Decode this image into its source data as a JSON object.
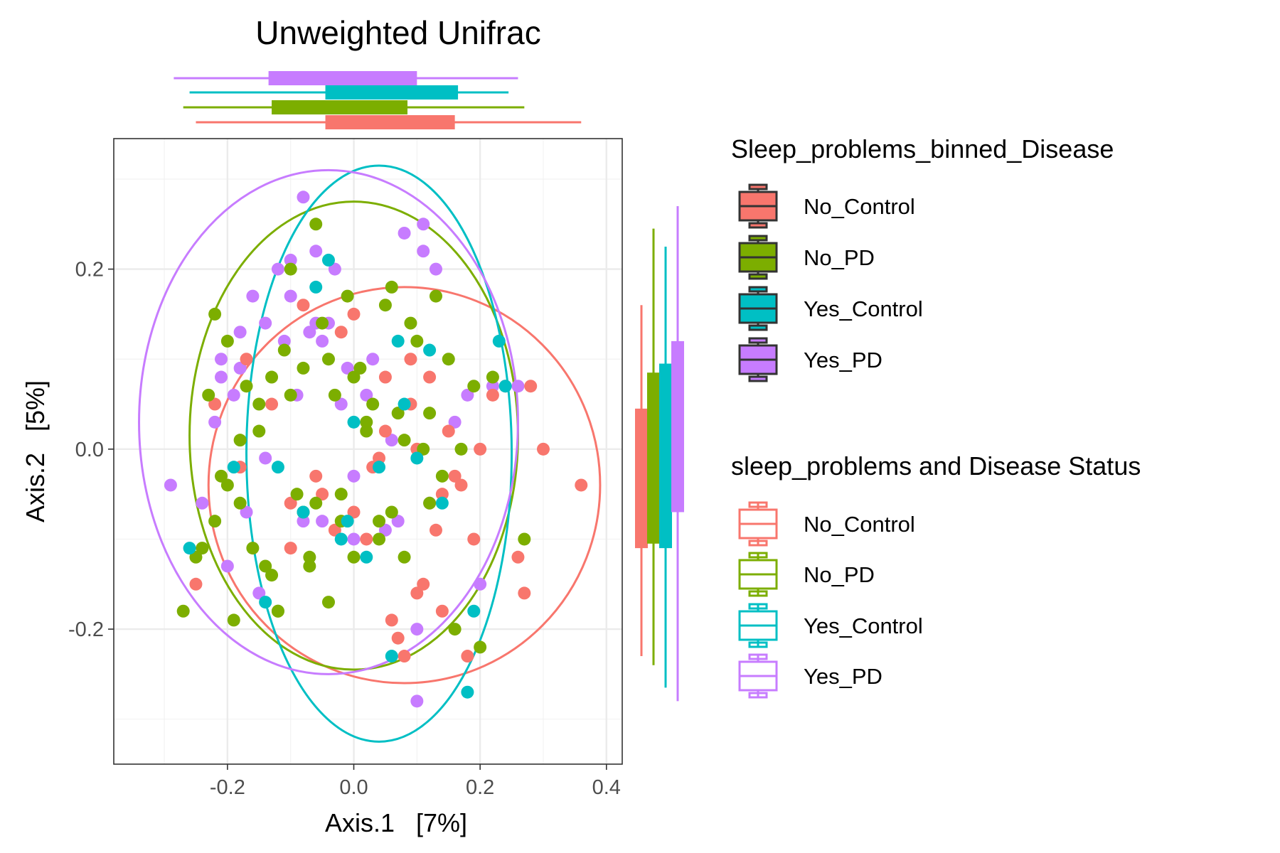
{
  "chart_data": {
    "type": "scatter",
    "title": "Unweighted Unifrac",
    "xlabel": "Axis.1   [7%]",
    "ylabel": "Axis.2   [5%]",
    "xlim": [
      -0.38,
      0.425
    ],
    "ylim": [
      -0.35,
      0.345
    ],
    "x_ticks": [
      -0.2,
      0.0,
      0.2,
      0.4
    ],
    "x_tick_labels": [
      "-0.2",
      "0.0",
      "0.2",
      "0.4"
    ],
    "y_ticks": [
      -0.2,
      0.0,
      0.2
    ],
    "y_tick_labels": [
      "-0.2",
      "0.0",
      "0.2"
    ],
    "grid": true,
    "legend_position": "right",
    "legend_fill": {
      "title": "Sleep_problems_binned_Disease",
      "entries": [
        "No_Control",
        "No_PD",
        "Yes_Control",
        "Yes_PD"
      ]
    },
    "legend_color": {
      "title": "sleep_problems and Disease Status",
      "entries": [
        "No_Control",
        "No_PD",
        "Yes_Control",
        "Yes_PD"
      ]
    },
    "series": [
      {
        "name": "No_Control",
        "color": "#F8766D",
        "ellipse": {
          "cx": 0.08,
          "cy": -0.04,
          "rx": 0.31,
          "ry": 0.22
        },
        "box_x": {
          "min": -0.25,
          "q1": -0.045,
          "median": 0.055,
          "q3": 0.16,
          "max": 0.36
        },
        "box_y": {
          "min": -0.23,
          "q1": -0.11,
          "median": -0.03,
          "q3": 0.045,
          "max": 0.16
        },
        "x": [
          -0.25,
          -0.22,
          -0.17,
          -0.13,
          -0.1,
          -0.08,
          -0.06,
          -0.03,
          -0.02,
          0.0,
          0.02,
          0.04,
          0.05,
          0.06,
          0.07,
          0.08,
          0.09,
          0.1,
          0.11,
          0.12,
          0.13,
          0.14,
          0.15,
          0.17,
          0.18,
          0.19,
          0.2,
          0.22,
          0.24,
          0.26,
          0.27,
          0.28,
          0.3,
          0.36,
          -0.18,
          -0.1,
          0.0,
          0.05,
          0.1,
          0.14,
          0.16,
          -0.05,
          0.03,
          0.09
        ],
        "y": [
          -0.15,
          0.05,
          0.1,
          0.05,
          -0.11,
          0.16,
          -0.03,
          -0.09,
          0.13,
          0.15,
          -0.1,
          -0.01,
          0.02,
          -0.19,
          -0.21,
          -0.23,
          0.1,
          0.0,
          -0.15,
          0.08,
          -0.09,
          -0.18,
          0.02,
          -0.04,
          -0.23,
          -0.1,
          0.0,
          0.06,
          0.07,
          -0.12,
          -0.16,
          0.07,
          0.0,
          -0.04,
          -0.02,
          -0.06,
          -0.07,
          0.08,
          -0.16,
          -0.05,
          -0.03,
          -0.05,
          -0.02,
          0.05
        ]
      },
      {
        "name": "No_PD",
        "color": "#7CAE00",
        "ellipse": {
          "cx": 0.0,
          "cy": 0.015,
          "rx": 0.26,
          "ry": 0.26
        },
        "box_x": {
          "min": -0.27,
          "q1": -0.13,
          "median": -0.05,
          "q3": 0.085,
          "max": 0.27
        },
        "box_y": {
          "min": -0.24,
          "q1": -0.105,
          "median": -0.015,
          "q3": 0.085,
          "max": 0.245
        },
        "x": [
          -0.27,
          -0.25,
          -0.23,
          -0.22,
          -0.21,
          -0.2,
          -0.19,
          -0.18,
          -0.17,
          -0.16,
          -0.15,
          -0.14,
          -0.13,
          -0.12,
          -0.11,
          -0.1,
          -0.09,
          -0.08,
          -0.07,
          -0.06,
          -0.05,
          -0.04,
          -0.03,
          -0.02,
          -0.01,
          0.0,
          0.01,
          0.02,
          0.03,
          0.04,
          0.05,
          0.06,
          0.07,
          0.08,
          0.09,
          0.1,
          0.11,
          0.12,
          0.13,
          0.14,
          0.15,
          0.17,
          0.19,
          0.2,
          0.22,
          0.27,
          -0.22,
          -0.18,
          -0.13,
          -0.08,
          -0.04,
          0.0,
          0.04,
          0.08,
          0.12,
          0.16,
          -0.24,
          -0.2,
          -0.15,
          -0.1,
          -0.06,
          -0.02,
          0.02,
          0.06,
          -0.12,
          -0.07
        ],
        "y": [
          -0.18,
          -0.12,
          0.06,
          0.15,
          -0.03,
          0.12,
          -0.19,
          -0.06,
          0.07,
          -0.11,
          0.05,
          -0.13,
          0.08,
          -0.18,
          0.11,
          0.2,
          -0.05,
          0.09,
          -0.13,
          0.25,
          0.14,
          -0.17,
          0.06,
          -0.08,
          0.17,
          -0.12,
          0.09,
          0.02,
          0.05,
          -0.08,
          0.16,
          0.18,
          0.04,
          0.01,
          0.14,
          0.12,
          0.0,
          -0.06,
          0.17,
          -0.03,
          0.1,
          0.0,
          0.07,
          -0.22,
          0.08,
          -0.1,
          -0.08,
          0.01,
          -0.14,
          -0.07,
          0.1,
          0.08,
          -0.1,
          -0.12,
          0.04,
          -0.2,
          -0.11,
          -0.04,
          0.02,
          0.06,
          -0.06,
          -0.05,
          0.03,
          -0.07,
          -0.18,
          -0.12
        ]
      },
      {
        "name": "Yes_Control",
        "color": "#00BFC4",
        "ellipse": {
          "cx": 0.04,
          "cy": -0.005,
          "rx": 0.21,
          "ry": 0.32
        },
        "box_x": {
          "min": -0.26,
          "q1": -0.045,
          "median": 0.07,
          "q3": 0.165,
          "max": 0.245
        },
        "box_y": {
          "min": -0.265,
          "q1": -0.11,
          "median": -0.005,
          "q3": 0.095,
          "max": 0.225
        },
        "x": [
          -0.26,
          -0.19,
          -0.14,
          -0.12,
          -0.08,
          -0.06,
          -0.04,
          -0.02,
          0.0,
          0.02,
          0.04,
          0.06,
          0.07,
          0.08,
          0.1,
          0.12,
          0.14,
          0.18,
          0.23,
          0.24,
          0.19,
          -0.01
        ],
        "y": [
          -0.11,
          -0.02,
          -0.17,
          -0.02,
          -0.07,
          0.18,
          0.21,
          -0.1,
          0.03,
          -0.12,
          -0.02,
          -0.23,
          0.12,
          0.05,
          -0.01,
          0.11,
          -0.06,
          -0.27,
          0.12,
          0.07,
          -0.18,
          -0.08
        ]
      },
      {
        "name": "Yes_PD",
        "color": "#C77CFF",
        "ellipse": {
          "cx": -0.04,
          "cy": 0.03,
          "rx": 0.3,
          "ry": 0.28
        },
        "box_x": {
          "min": -0.285,
          "q1": -0.135,
          "median": -0.015,
          "q3": 0.1,
          "max": 0.26
        },
        "box_y": {
          "min": -0.28,
          "q1": -0.07,
          "median": 0.025,
          "q3": 0.12,
          "max": 0.27
        },
        "x": [
          -0.29,
          -0.24,
          -0.22,
          -0.21,
          -0.2,
          -0.19,
          -0.18,
          -0.17,
          -0.16,
          -0.15,
          -0.14,
          -0.12,
          -0.11,
          -0.1,
          -0.09,
          -0.08,
          -0.07,
          -0.06,
          -0.05,
          -0.04,
          -0.03,
          -0.02,
          -0.01,
          0.0,
          0.02,
          0.03,
          0.05,
          0.07,
          0.08,
          0.1,
          0.11,
          0.12,
          0.13,
          0.16,
          0.18,
          0.2,
          0.22,
          0.26,
          -0.05,
          0.06,
          -0.14,
          -0.1,
          -0.08,
          0.1,
          0.11,
          -0.18,
          -0.21,
          0.0,
          -0.06
        ],
        "y": [
          -0.04,
          -0.06,
          0.03,
          0.1,
          -0.13,
          0.06,
          0.13,
          -0.07,
          0.17,
          -0.16,
          0.14,
          0.2,
          0.12,
          0.17,
          0.06,
          0.28,
          0.13,
          0.22,
          0.12,
          0.14,
          0.2,
          0.05,
          0.09,
          -0.03,
          0.06,
          0.1,
          -0.09,
          -0.08,
          0.24,
          -0.2,
          0.22,
          -0.06,
          0.2,
          0.03,
          0.06,
          -0.15,
          0.07,
          0.07,
          -0.08,
          0.01,
          -0.01,
          0.21,
          -0.08,
          -0.28,
          0.25,
          0.09,
          0.08,
          -0.1,
          0.14
        ]
      }
    ]
  }
}
